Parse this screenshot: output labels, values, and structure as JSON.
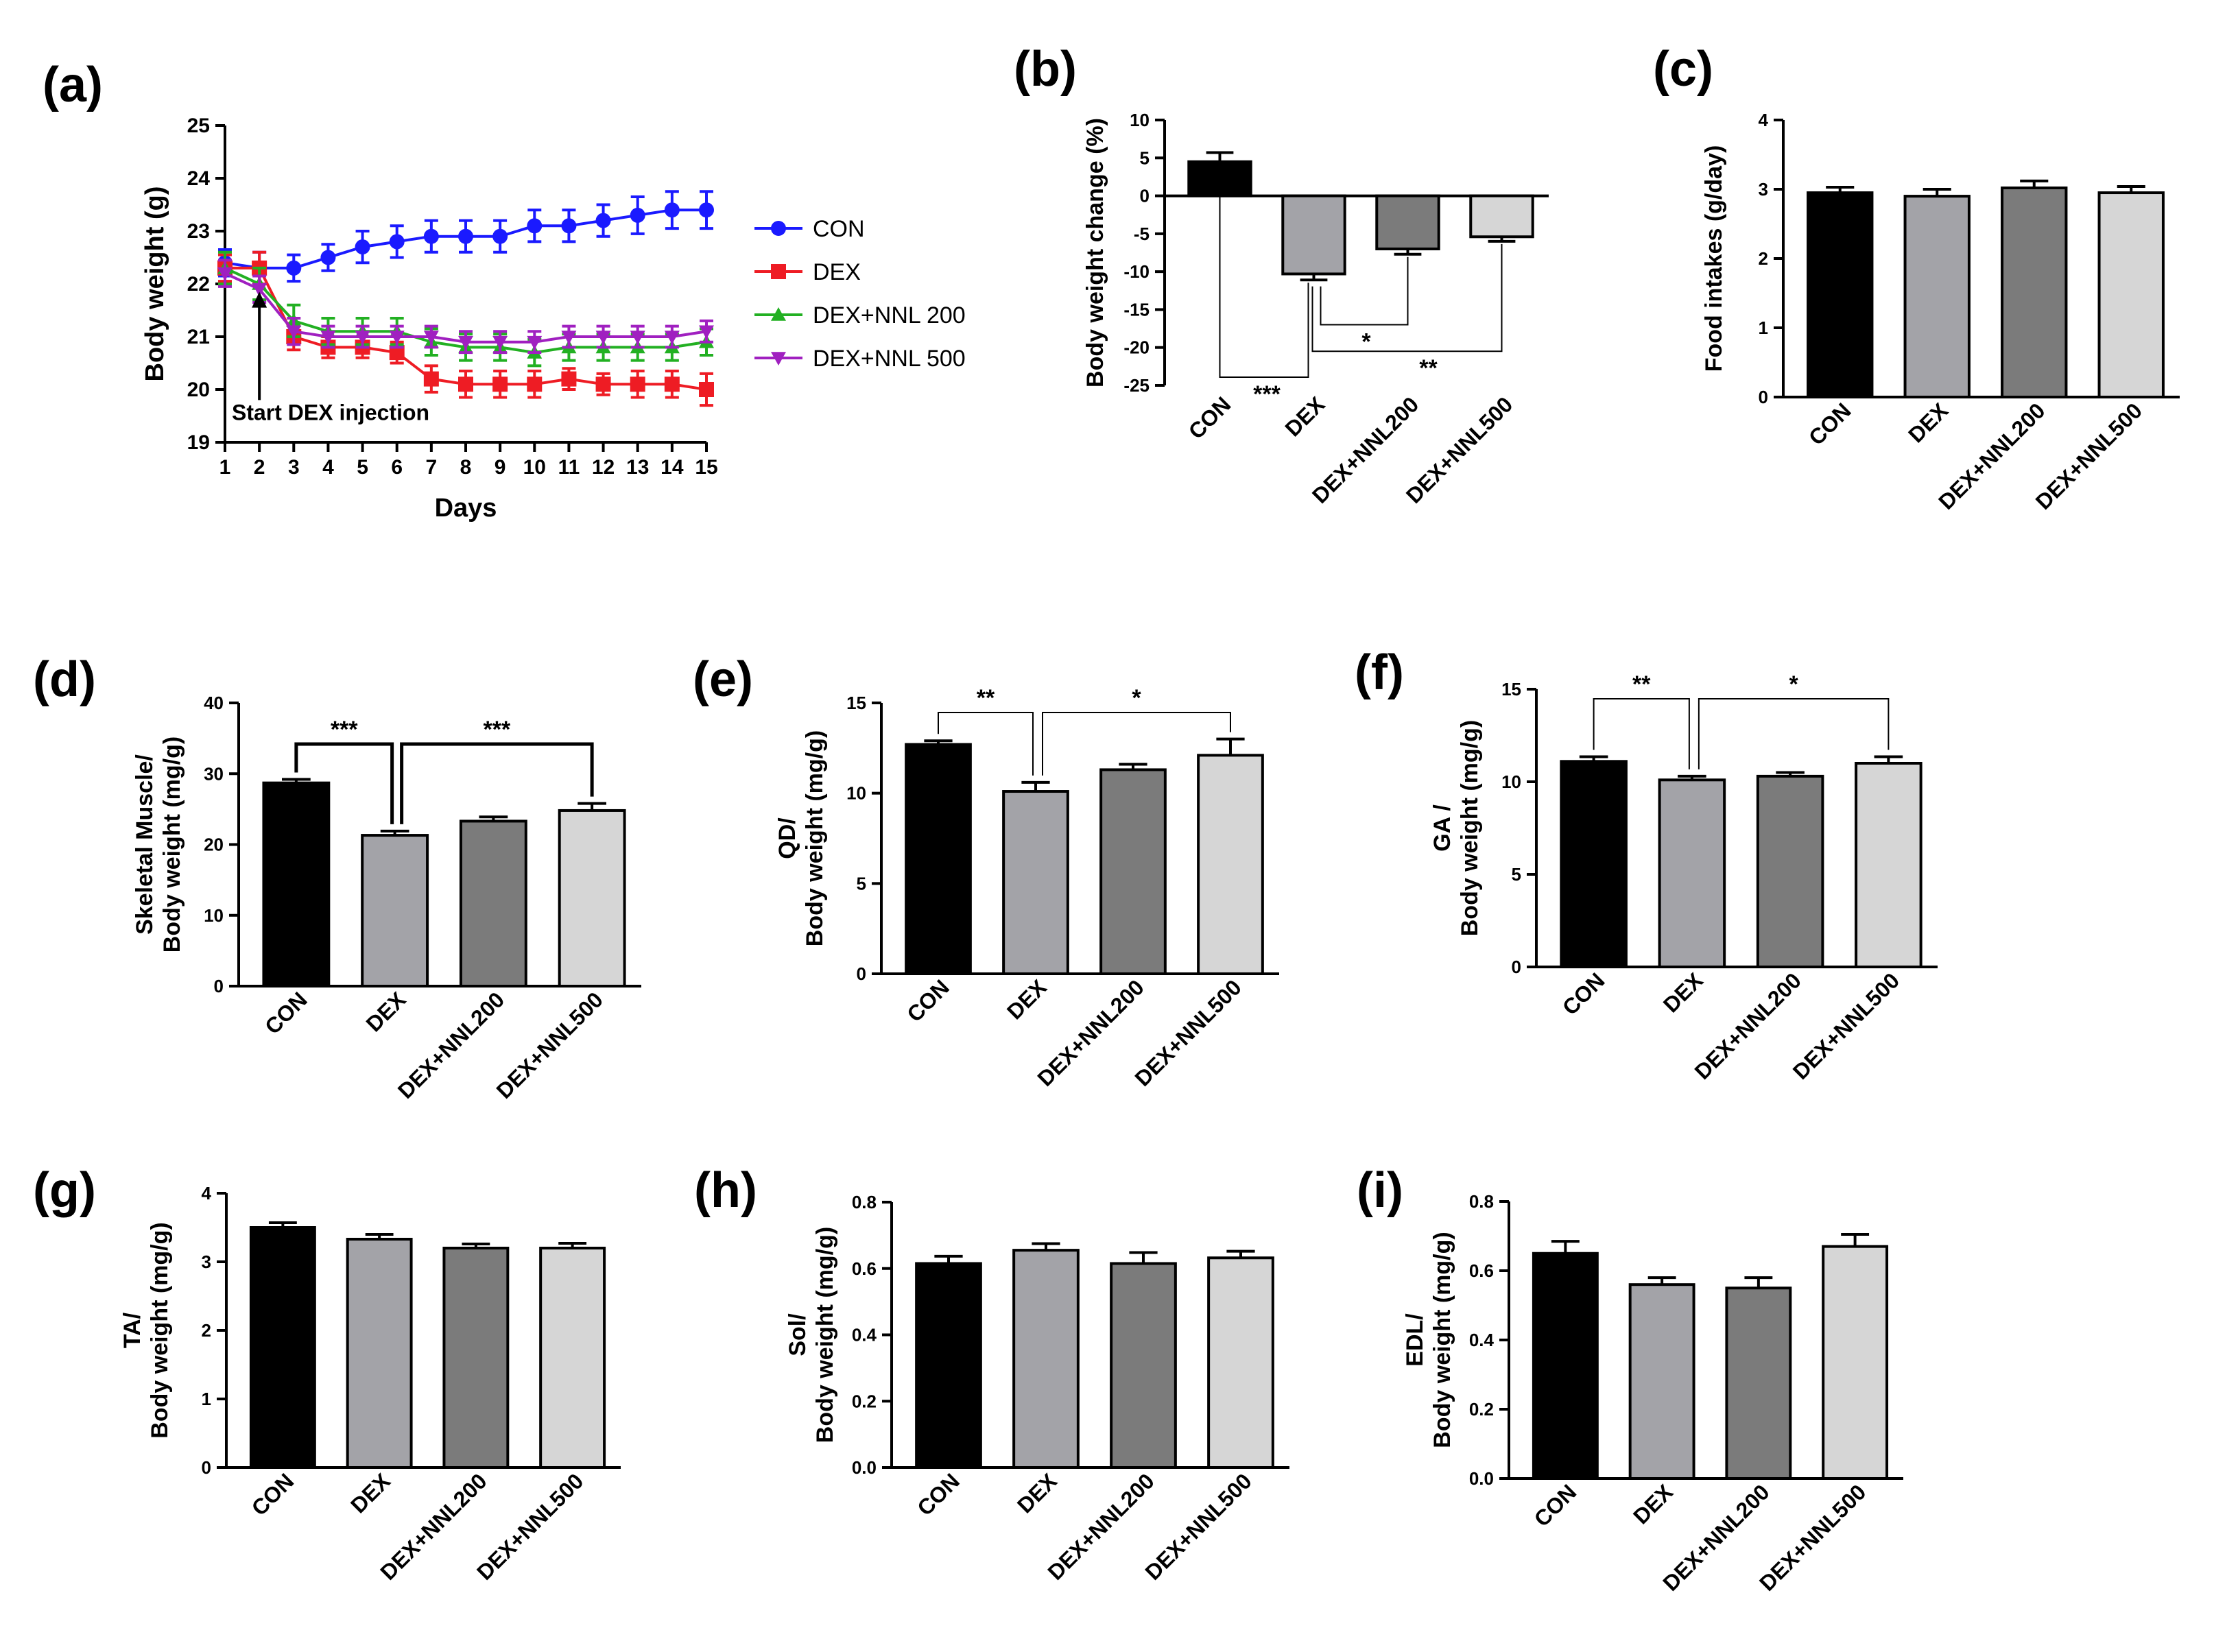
{
  "chart_data": [
    {
      "id": "a",
      "panel_label": "(a)",
      "type": "line",
      "xlabel": "Days",
      "ylabel": "Body weight (g)",
      "ylim": [
        19,
        25
      ],
      "xlim": [
        1,
        15
      ],
      "x": [
        1,
        2,
        3,
        4,
        5,
        6,
        7,
        8,
        9,
        10,
        11,
        12,
        13,
        14,
        15
      ],
      "series": [
        {
          "name": "CON",
          "color": "#1a1aff",
          "marker": "circle",
          "values": [
            22.4,
            22.3,
            22.3,
            22.5,
            22.7,
            22.8,
            22.9,
            22.9,
            22.9,
            23.1,
            23.1,
            23.2,
            23.3,
            23.4,
            23.4
          ],
          "errors": [
            0.25,
            0.3,
            0.25,
            0.25,
            0.3,
            0.3,
            0.3,
            0.3,
            0.3,
            0.3,
            0.3,
            0.3,
            0.35,
            0.35,
            0.35
          ]
        },
        {
          "name": "DEX",
          "color": "#ee1c24",
          "marker": "square",
          "values": [
            22.3,
            22.3,
            21.0,
            20.8,
            20.8,
            20.7,
            20.2,
            20.1,
            20.1,
            20.1,
            20.2,
            20.1,
            20.1,
            20.1,
            20.0
          ],
          "errors": [
            0.25,
            0.3,
            0.25,
            0.2,
            0.2,
            0.2,
            0.25,
            0.25,
            0.25,
            0.25,
            0.2,
            0.2,
            0.25,
            0.25,
            0.3
          ]
        },
        {
          "name": "DEX+NNL 200",
          "color": "#22b022",
          "marker": "triangle-up",
          "values": [
            22.3,
            22.0,
            21.3,
            21.1,
            21.1,
            21.1,
            20.9,
            20.8,
            20.8,
            20.7,
            20.8,
            20.8,
            20.8,
            20.8,
            20.9
          ],
          "errors": [
            0.3,
            0.3,
            0.3,
            0.25,
            0.25,
            0.25,
            0.25,
            0.25,
            0.25,
            0.25,
            0.25,
            0.25,
            0.25,
            0.25,
            0.25
          ]
        },
        {
          "name": "DEX+NNL 500",
          "color": "#a020c0",
          "marker": "triangle-down",
          "values": [
            22.2,
            21.9,
            21.1,
            21.0,
            21.0,
            21.0,
            21.0,
            20.9,
            20.9,
            20.9,
            21.0,
            21.0,
            21.0,
            21.0,
            21.1
          ],
          "errors": [
            0.25,
            0.25,
            0.25,
            0.2,
            0.2,
            0.2,
            0.2,
            0.2,
            0.2,
            0.2,
            0.2,
            0.2,
            0.2,
            0.2,
            0.2
          ]
        }
      ],
      "annotation": "Start DEX injection",
      "annotation_x": 2
    },
    {
      "id": "b",
      "panel_label": "(b)",
      "type": "bar",
      "ylabel": "Body weight change (%)",
      "ylim": [
        -25,
        10
      ],
      "ytick_step": 5,
      "categories": [
        "CON",
        "DEX",
        "DEX+NNL200",
        "DEX+NNL500"
      ],
      "values": [
        4.5,
        -10.3,
        -7.0,
        -5.4
      ],
      "errors": [
        1.2,
        0.8,
        0.7,
        0.6
      ],
      "significance": [
        {
          "from": 0,
          "to": 1,
          "label": "***"
        },
        {
          "from": 1,
          "to": 2,
          "label": "*"
        },
        {
          "from": 1,
          "to": 3,
          "label": "**"
        }
      ]
    },
    {
      "id": "c",
      "panel_label": "(c)",
      "type": "bar",
      "ylabel": "Food intakes (g/day)",
      "ylim": [
        0,
        4
      ],
      "ytick_step": 1,
      "categories": [
        "CON",
        "DEX",
        "DEX+NNL200",
        "DEX+NNL500"
      ],
      "values": [
        2.95,
        2.9,
        3.02,
        2.95
      ],
      "errors": [
        0.08,
        0.1,
        0.1,
        0.09
      ],
      "significance": []
    },
    {
      "id": "d",
      "panel_label": "(d)",
      "type": "bar",
      "ylabel": "Skeletal Muscle/ Body weight  (mg/g)",
      "ylim": [
        0,
        40
      ],
      "ytick_step": 10,
      "categories": [
        "CON",
        "DEX",
        "DEX+NNL200",
        "DEX+NNL500"
      ],
      "values": [
        28.7,
        21.3,
        23.3,
        24.8
      ],
      "errors": [
        0.5,
        0.6,
        0.6,
        1.0
      ],
      "significance": [
        {
          "from": 0,
          "to": 1,
          "label": "***"
        },
        {
          "from": 1,
          "to": 3,
          "label": "***"
        }
      ]
    },
    {
      "id": "e",
      "panel_label": "(e)",
      "type": "bar",
      "ylabel": "QD/ Body weight (mg/g)",
      "ylim": [
        0,
        15
      ],
      "ytick_step": 5,
      "categories": [
        "CON",
        "DEX",
        "DEX+NNL200",
        "DEX+NNL500"
      ],
      "values": [
        12.7,
        10.1,
        11.3,
        12.1
      ],
      "errors": [
        0.2,
        0.5,
        0.3,
        0.9
      ],
      "significance": [
        {
          "from": 0,
          "to": 1,
          "label": "**"
        },
        {
          "from": 1,
          "to": 3,
          "label": "*"
        }
      ]
    },
    {
      "id": "f",
      "panel_label": "(f)",
      "type": "bar",
      "ylabel": "GA / Body weight (mg/g)",
      "ylim": [
        0,
        15
      ],
      "ytick_step": 5,
      "categories": [
        "CON",
        "DEX",
        "DEX+NNL200",
        "DEX+NNL500"
      ],
      "values": [
        11.1,
        10.1,
        10.3,
        11.0
      ],
      "errors": [
        0.25,
        0.2,
        0.2,
        0.35
      ],
      "significance": [
        {
          "from": 0,
          "to": 1,
          "label": "**"
        },
        {
          "from": 1,
          "to": 3,
          "label": "*"
        }
      ]
    },
    {
      "id": "g",
      "panel_label": "(g)",
      "type": "bar",
      "ylabel": "TA/ Body weight (mg/g)",
      "ylim": [
        0,
        4
      ],
      "ytick_step": 1,
      "categories": [
        "CON",
        "DEX",
        "DEX+NNL200",
        "DEX+NNL500"
      ],
      "values": [
        3.5,
        3.33,
        3.2,
        3.2
      ],
      "errors": [
        0.07,
        0.07,
        0.06,
        0.07
      ],
      "significance": []
    },
    {
      "id": "h",
      "panel_label": "(h)",
      "type": "bar",
      "ylabel": "Sol/ Body weight (mg/g)",
      "ylim": [
        0,
        0.8
      ],
      "ytick_step": 0.2,
      "decimals": 1,
      "categories": [
        "CON",
        "DEX",
        "DEX+NNL200",
        "DEX+NNL500"
      ],
      "values": [
        0.615,
        0.655,
        0.615,
        0.632
      ],
      "errors": [
        0.022,
        0.02,
        0.033,
        0.02
      ],
      "significance": []
    },
    {
      "id": "i",
      "panel_label": "(i)",
      "type": "bar",
      "ylabel": "EDL/ Body weight (mg/g)",
      "ylim": [
        0,
        0.8
      ],
      "ytick_step": 0.2,
      "decimals": 1,
      "categories": [
        "CON",
        "DEX",
        "DEX+NNL200",
        "DEX+NNL500"
      ],
      "values": [
        0.65,
        0.56,
        0.55,
        0.67
      ],
      "errors": [
        0.035,
        0.02,
        0.03,
        0.035
      ],
      "significance": []
    }
  ],
  "bar_colors": [
    "#000000",
    "#a3a3a8",
    "#7b7b7b",
    "#d6d6d6"
  ]
}
